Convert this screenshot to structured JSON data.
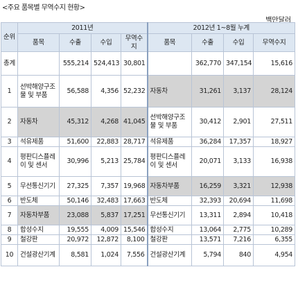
{
  "title": "<주요 품목별 무역수지 현황>",
  "unit": "백만달러",
  "header": {
    "rank": "순위",
    "period_2011": "2011년",
    "period_2012": "2012년 1~8월 누계",
    "item": "품목",
    "export": "수출",
    "import": "수입",
    "balance": "무역수지"
  },
  "total": {
    "label": "총계",
    "y2011": {
      "export": "555,214",
      "import": "524,413",
      "balance": "30,801"
    },
    "y2012": {
      "export": "362,770",
      "import": "347,154",
      "balance": "15,616"
    }
  },
  "rows": [
    {
      "rank": "1",
      "a": {
        "item": "선박해양구조물 및 부품",
        "export": "56,588",
        "import": "4,356",
        "balance": "52,232"
      },
      "b": {
        "item": "자동차",
        "export": "31,261",
        "import": "3,137",
        "balance": "28,124"
      }
    },
    {
      "rank": "2",
      "a": {
        "item": "자동차",
        "export": "45,312",
        "import": "4,268",
        "balance": "41,045"
      },
      "b": {
        "item": "선박해양구조물 및 부품",
        "export": "30,412",
        "import": "2,901",
        "balance": "27,511"
      }
    },
    {
      "rank": "3",
      "a": {
        "item": "석유제품",
        "export": "51,600",
        "import": "22,883",
        "balance": "28,717"
      },
      "b": {
        "item": "석유제품",
        "export": "36,284",
        "import": "17,357",
        "balance": "18,927"
      }
    },
    {
      "rank": "4",
      "a": {
        "item": "평판디스플레이 및 센서",
        "export": "30,996",
        "import": "5,213",
        "balance": "25,784"
      },
      "b": {
        "item": "평판디스플레이 및 센서",
        "export": "20,071",
        "import": "3,133",
        "balance": "16,938"
      }
    },
    {
      "rank": "5",
      "a": {
        "item": "무선통신기기",
        "export": "27,325",
        "import": "7,357",
        "balance": "19,968"
      },
      "b": {
        "item": "자동차부품",
        "export": "16,259",
        "import": "3,321",
        "balance": "12,938"
      }
    },
    {
      "rank": "6",
      "a": {
        "item": "반도체",
        "export": "50,146",
        "import": "32,483",
        "balance": "17,663"
      },
      "b": {
        "item": "반도체",
        "export": "32,393",
        "import": "20,694",
        "balance": "11,698"
      }
    },
    {
      "rank": "7",
      "a": {
        "item": "자동차부품",
        "export": "23,088",
        "import": "5,837",
        "balance": "17,251"
      },
      "b": {
        "item": "무선통신기기",
        "export": "13,311",
        "import": "2,894",
        "balance": "10,418"
      }
    },
    {
      "rank": "8",
      "a": {
        "item": "합성수지",
        "export": "19,555",
        "import": "4,009",
        "balance": "15,546"
      },
      "b": {
        "item": "합성수지",
        "export": "13,064",
        "import": "2,775",
        "balance": "10,289"
      }
    },
    {
      "rank": "9",
      "a": {
        "item": "철강판",
        "export": "20,972",
        "import": "12,872",
        "balance": "8,100"
      },
      "b": {
        "item": "철강판",
        "export": "13,571",
        "import": "7,216",
        "balance": "6,355"
      }
    },
    {
      "rank": "10",
      "a": {
        "item": "건설광산기계",
        "export": "8,581",
        "import": "1,024",
        "balance": "7,556"
      },
      "b": {
        "item": "건설광산기계",
        "export": "5,794",
        "import": "840",
        "balance": "4,954"
      }
    }
  ],
  "highlight": {
    "auto": "자동차",
    "parts": "자동차부품"
  },
  "colors": {
    "header_bg": "#dde7f2",
    "highlight_bg": "#d4d4d4",
    "border": "#b8c4d6"
  }
}
